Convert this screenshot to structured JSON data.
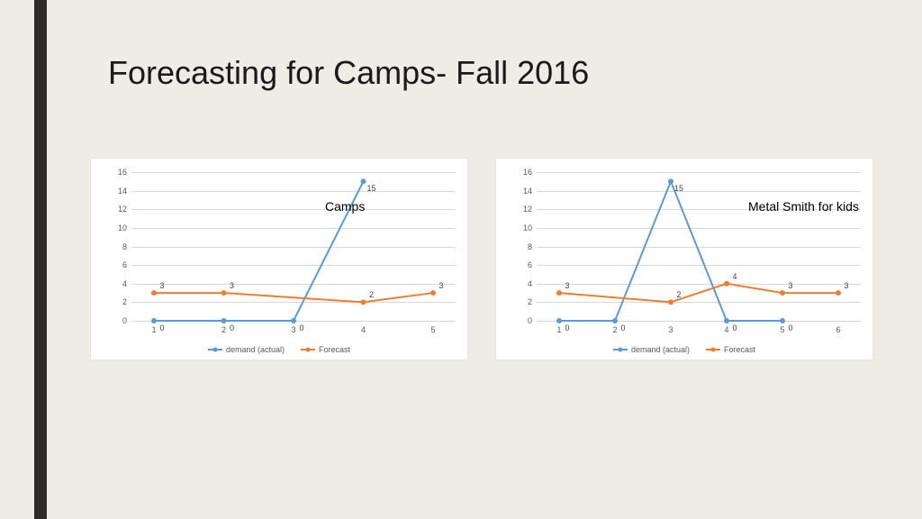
{
  "title": "Forecasting for Camps- Fall 2016",
  "background_color": "#edece5",
  "panel_background": "#ffffff",
  "grid_color": "#d9d9d9",
  "series_colors": {
    "demand": "#5b9bd5",
    "forecast": "#ed7d31"
  },
  "legend": {
    "demand": "demand (actual)",
    "forecast": "Forecast"
  },
  "yaxis": {
    "min": 0,
    "max": 16,
    "step": 2
  },
  "charts": [
    {
      "title": "Camps",
      "title_class": "left",
      "x": [
        1,
        2,
        3,
        4,
        5
      ],
      "demand": [
        0,
        0,
        0,
        15,
        null
      ],
      "forecast": [
        3,
        3,
        null,
        2,
        3
      ],
      "labels_demand": [
        "0",
        "0",
        "0",
        "15",
        ""
      ],
      "labels_forecast": [
        "3",
        "3",
        "",
        "2",
        "3"
      ]
    },
    {
      "title": "Metal Smith for kids",
      "title_class": "right",
      "x": [
        1,
        2,
        3,
        4,
        5,
        6
      ],
      "demand": [
        0,
        0,
        15,
        0,
        0,
        null
      ],
      "forecast": [
        3,
        null,
        2,
        4,
        3,
        3
      ],
      "labels_demand": [
        "0",
        "0",
        "15",
        "0",
        "0",
        ""
      ],
      "labels_forecast": [
        "3",
        "",
        "2",
        "4",
        "3",
        "3"
      ]
    }
  ]
}
